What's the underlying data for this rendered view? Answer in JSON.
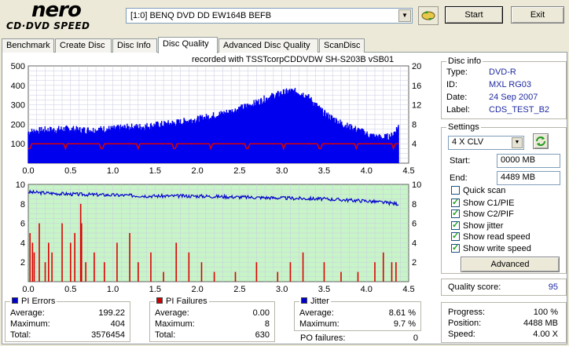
{
  "logo": {
    "brand": "nero",
    "product": "CD·DVD SPEED"
  },
  "drive": {
    "selected": "[1:0]  BENQ DVD DD EW164B BEFB"
  },
  "buttons": {
    "start": "Start",
    "exit": "Exit",
    "advanced": "Advanced"
  },
  "tabs": [
    {
      "label": "Benchmark"
    },
    {
      "label": "Create Disc"
    },
    {
      "label": "Disc Info"
    },
    {
      "label": "Disc Quality",
      "active": true
    },
    {
      "label": "Advanced Disc Quality"
    },
    {
      "label": "ScanDisc"
    }
  ],
  "chart_header": "recorded with TSSTcorpCDDVDW SH-S203B  vSB01",
  "disc_info": {
    "title": "Disc info",
    "type_label": "Type:",
    "type": "DVD-R",
    "id_label": "ID:",
    "id": "MXL RG03",
    "date_label": "Date:",
    "date": "24 Sep 2007",
    "label_label": "Label:",
    "label": "CDS_TEST_B2"
  },
  "settings": {
    "title": "Settings",
    "speed": "4 X CLV",
    "start_label": "Start:",
    "start": "0000 MB",
    "end_label": "End:",
    "end": "4489 MB",
    "quick_scan": {
      "label": "Quick scan",
      "checked": false
    },
    "show_c1": {
      "label": "Show C1/PIE",
      "checked": true
    },
    "show_c2": {
      "label": "Show C2/PIF",
      "checked": true
    },
    "show_jitter": {
      "label": "Show jitter",
      "checked": true
    },
    "show_read": {
      "label": "Show read speed",
      "checked": true
    },
    "show_write": {
      "label": "Show write speed",
      "checked": true
    }
  },
  "quality": {
    "label": "Quality score:",
    "value": "95"
  },
  "progress": {
    "progress_label": "Progress:",
    "progress": "100 %",
    "position_label": "Position:",
    "position": "4488 MB",
    "speed_label": "Speed:",
    "speed": "4.00 X"
  },
  "pi_errors": {
    "title": "PI Errors",
    "color": "#0000cc",
    "average_label": "Average:",
    "average": "199.22",
    "maximum_label": "Maximum:",
    "maximum": "404",
    "total_label": "Total:",
    "total": "3576454"
  },
  "pi_failures": {
    "title": "PI Failures",
    "color": "#cc0000",
    "average_label": "Average:",
    "average": "0.00",
    "maximum_label": "Maximum:",
    "maximum": "8",
    "total_label": "Total:",
    "total": "630"
  },
  "jitter": {
    "title": "Jitter",
    "color": "#0000cc",
    "average_label": "Average:",
    "average": "8.61 %",
    "maximum_label": "Maximum:",
    "maximum": "9.7 %"
  },
  "po_failures": {
    "label": "PO failures:",
    "value": "0"
  },
  "colors": {
    "pie_bar": "#0000ee",
    "pif_bar": "#dd0000",
    "speed_line": "#dd0000",
    "jitter_line": "#0000cc",
    "bottom_bg": "#c8f5c8"
  },
  "chart_data": [
    {
      "type": "bar",
      "title": "",
      "x_ticks": [
        "0.0",
        "0.5",
        "1.0",
        "1.5",
        "2.0",
        "2.5",
        "3.0",
        "3.5",
        "4.0",
        "4.5"
      ],
      "y_left_ticks": [
        "100",
        "200",
        "300",
        "400",
        "500"
      ],
      "y_right_ticks": [
        "4",
        "8",
        "12",
        "16",
        "20"
      ],
      "xlim": [
        0,
        4.5
      ],
      "ylim": [
        0,
        500
      ],
      "y2lim": [
        0,
        20
      ],
      "series": [
        {
          "name": "PI Errors",
          "x": [
            0.0,
            0.1,
            0.2,
            0.3,
            0.4,
            0.5,
            0.6,
            0.7,
            0.8,
            0.9,
            1.0,
            1.1,
            1.2,
            1.3,
            1.4,
            1.5,
            1.6,
            1.7,
            1.8,
            1.9,
            2.0,
            2.1,
            2.2,
            2.3,
            2.4,
            2.5,
            2.6,
            2.7,
            2.8,
            2.9,
            3.0,
            3.1,
            3.2,
            3.3,
            3.4,
            3.5,
            3.6,
            3.7,
            3.8,
            3.9,
            4.0,
            4.1,
            4.2,
            4.3,
            4.38
          ],
          "values": [
            160,
            165,
            170,
            170,
            175,
            175,
            170,
            170,
            170,
            175,
            175,
            180,
            185,
            185,
            190,
            195,
            200,
            205,
            210,
            220,
            225,
            235,
            245,
            255,
            265,
            280,
            295,
            310,
            330,
            345,
            360,
            370,
            365,
            345,
            300,
            255,
            230,
            205,
            185,
            170,
            150,
            135,
            130,
            140,
            190
          ]
        },
        {
          "name": "Read speed",
          "x": [
            0.0,
            0.5,
            1.0,
            1.5,
            2.0,
            2.5,
            3.0,
            3.5,
            4.0,
            4.38
          ],
          "values": [
            4,
            4,
            4,
            4,
            4,
            4,
            4,
            4,
            4,
            4
          ]
        }
      ]
    },
    {
      "type": "bar",
      "x_ticks": [
        "0.0",
        "0.5",
        "1.0",
        "1.5",
        "2.0",
        "2.5",
        "3.0",
        "3.5",
        "4.0",
        "4.5"
      ],
      "y_left_ticks": [
        "2",
        "4",
        "6",
        "8",
        "10"
      ],
      "y_right_ticks": [
        "2",
        "4",
        "6",
        "8",
        "10"
      ],
      "xlim": [
        0,
        4.5
      ],
      "ylim": [
        0,
        10
      ],
      "y2lim": [
        0,
        10
      ],
      "series": [
        {
          "name": "PI Failures",
          "x": [
            0.02,
            0.05,
            0.07,
            0.13,
            0.2,
            0.24,
            0.28,
            0.4,
            0.5,
            0.55,
            0.62,
            0.63,
            0.68,
            0.78,
            0.9,
            1.05,
            1.2,
            1.3,
            1.45,
            1.6,
            1.75,
            1.9,
            2.05,
            2.2,
            2.45,
            2.7,
            2.95,
            3.1,
            3.25,
            3.5,
            3.7,
            3.9,
            4.1,
            4.2,
            4.3,
            4.35
          ],
          "values": [
            5,
            4,
            3,
            6,
            2,
            4,
            3,
            6,
            4,
            5,
            8,
            6,
            2,
            3,
            2,
            4,
            5,
            2,
            3,
            1,
            4,
            3,
            2,
            1,
            1,
            2,
            1,
            2,
            3,
            2,
            1,
            1,
            2,
            3,
            2,
            2
          ]
        },
        {
          "name": "Jitter",
          "x": [
            0.0,
            0.5,
            1.0,
            1.5,
            2.0,
            2.5,
            3.0,
            3.5,
            4.0,
            4.38
          ],
          "values": [
            9.2,
            9.0,
            8.9,
            8.8,
            8.8,
            8.7,
            8.6,
            8.5,
            8.3,
            8.0
          ]
        }
      ]
    }
  ]
}
